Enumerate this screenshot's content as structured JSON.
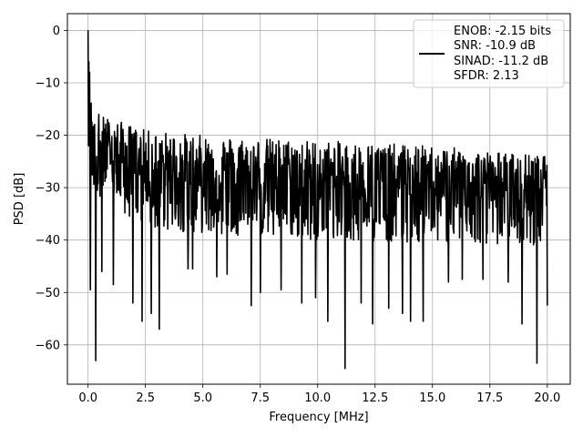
{
  "chart_data": {
    "type": "line",
    "title": "",
    "xlabel": "Frequency [MHz]",
    "ylabel": "PSD [dB]",
    "xlim": [
      -0.9,
      21.0
    ],
    "ylim": [
      -67.5,
      3.2
    ],
    "xticks": [
      0.0,
      2.5,
      5.0,
      7.5,
      10.0,
      12.5,
      15.0,
      17.5,
      20.0
    ],
    "xtick_labels": [
      "0.0",
      "2.5",
      "5.0",
      "7.5",
      "10.0",
      "12.5",
      "15.0",
      "17.5",
      "20.0"
    ],
    "yticks": [
      0,
      -10,
      -20,
      -30,
      -40,
      -50,
      -60
    ],
    "ytick_labels": [
      "0",
      "−10",
      "−20",
      "−30",
      "−40",
      "−50",
      "−60"
    ],
    "grid": true,
    "legend": {
      "placement": "top-right",
      "lines": [
        "ENOB: -2.15 bits",
        "SNR: -10.9 dB",
        "SINAD: -11.2 dB",
        "SFDR: 2.13"
      ]
    },
    "series": [
      {
        "color": "#000000",
        "x_range": [
          0.0,
          20.0
        ],
        "points": 1200,
        "peak": {
          "x": 0.0,
          "y": 0.0
        },
        "upper_envelope": [
          [
            0.0,
            -10
          ],
          [
            0.5,
            -16
          ],
          [
            2.5,
            -19
          ],
          [
            5.0,
            -20
          ],
          [
            10.0,
            -21
          ],
          [
            15.0,
            -22
          ],
          [
            20.0,
            -24
          ]
        ],
        "typical_level": [
          [
            0.0,
            -22
          ],
          [
            2.5,
            -27
          ],
          [
            10.0,
            -29
          ],
          [
            20.0,
            -30
          ]
        ],
        "lower_envelope": [
          [
            0.0,
            -30
          ],
          [
            2.5,
            -38
          ],
          [
            10.0,
            -40
          ],
          [
            20.0,
            -41
          ]
        ],
        "dips": [
          [
            0.1,
            -49.5
          ],
          [
            0.33,
            -63
          ],
          [
            0.6,
            -46
          ],
          [
            1.1,
            -48.5
          ],
          [
            1.95,
            -52
          ],
          [
            2.35,
            -55.5
          ],
          [
            2.75,
            -54
          ],
          [
            3.1,
            -57
          ],
          [
            4.35,
            -45.5
          ],
          [
            4.55,
            -45.5
          ],
          [
            5.6,
            -47
          ],
          [
            6.05,
            -46.5
          ],
          [
            7.1,
            -52.5
          ],
          [
            7.5,
            -50
          ],
          [
            8.4,
            -49.5
          ],
          [
            9.3,
            -52
          ],
          [
            9.9,
            -51
          ],
          [
            10.45,
            -55.5
          ],
          [
            11.2,
            -64.5
          ],
          [
            11.9,
            -52
          ],
          [
            12.4,
            -56
          ],
          [
            13.1,
            -53
          ],
          [
            13.7,
            -54
          ],
          [
            14.05,
            -55.5
          ],
          [
            14.6,
            -55.5
          ],
          [
            15.7,
            -48
          ],
          [
            16.3,
            -47.5
          ],
          [
            17.2,
            -47.5
          ],
          [
            18.3,
            -48
          ],
          [
            18.9,
            -56
          ],
          [
            19.55,
            -63.5
          ],
          [
            20.0,
            -52.5
          ]
        ]
      }
    ]
  }
}
